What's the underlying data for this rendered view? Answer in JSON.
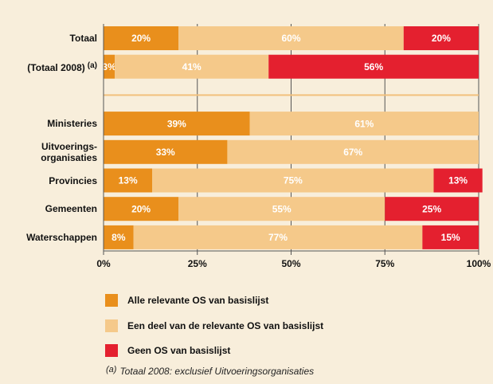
{
  "chart_data": {
    "type": "stacked-barh",
    "categories": [
      "Totaal",
      "(Totaal 2008)",
      null,
      "Ministeries",
      "Uitvoerings-\norganisaties",
      "Provincies",
      "Gemeenten",
      "Waterschappen"
    ],
    "series": [
      {
        "name": "Alle relevante OS van basislijst",
        "color": "#e98f1c",
        "values": [
          20,
          3,
          null,
          39,
          33,
          13,
          20,
          8
        ],
        "value_labels": [
          "20%",
          "3%",
          null,
          "39%",
          "33%",
          "13%",
          "20%",
          "8%"
        ]
      },
      {
        "name": "Een deel van de relevante OS van basislijst",
        "color": "#f5c98a",
        "values": [
          60,
          41,
          null,
          61,
          67,
          75,
          55,
          77
        ],
        "value_labels": [
          "60%",
          "41%",
          null,
          "61%",
          "67%",
          "75%",
          "55%",
          "77%"
        ]
      },
      {
        "name": "Geen OS van basislijst",
        "color": "#e4202f",
        "values": [
          20,
          56,
          null,
          null,
          null,
          13,
          25,
          15
        ],
        "value_labels": [
          "20%",
          "56%",
          null,
          null,
          null,
          "13%",
          "25%",
          "15%"
        ]
      }
    ],
    "xlim": [
      0,
      100
    ],
    "xticks": [
      {
        "value": 0,
        "label": "0%"
      },
      {
        "value": 25,
        "label": "25%"
      },
      {
        "value": 50,
        "label": "50%"
      },
      {
        "value": 75,
        "label": "75%"
      },
      {
        "value": 100,
        "label": "100%"
      }
    ],
    "grid": true,
    "footnote": {
      "marker": "(a)",
      "text": "Totaal 2008: exclusief Uitvoeringsorganisaties"
    }
  }
}
